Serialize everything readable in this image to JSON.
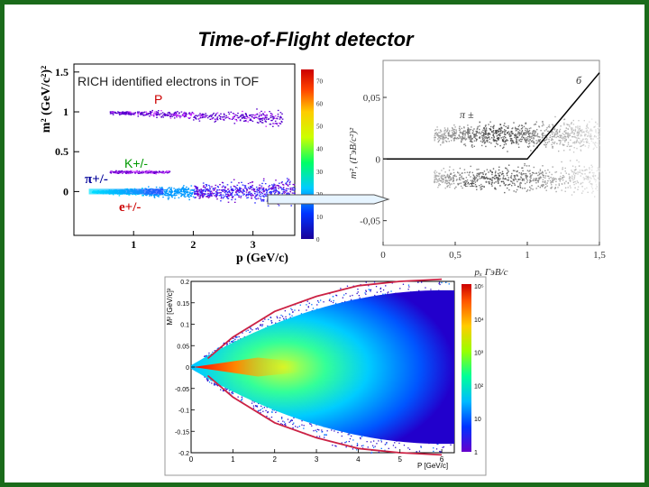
{
  "slide": {
    "title": "Time-of-Flight detector"
  },
  "chart_data": [
    {
      "type": "heatmap",
      "xlabel": "p (GeV/c)",
      "ylabel": "m² (GeV/c²)²",
      "x_ticks": [
        "1",
        "2",
        "3"
      ],
      "y_ticks": [
        "1.5",
        "1",
        "0.5",
        "0"
      ],
      "xlim": [
        0,
        3.7
      ],
      "ylim": [
        -0.55,
        1.6
      ],
      "colorbar_ticks": [
        "70",
        "60",
        "50",
        "40",
        "30",
        "20",
        "10",
        "0"
      ],
      "colorbar_range": [
        0,
        75
      ],
      "annotations": {
        "title_box": "RICH identified electrons in TOF",
        "proton": "P",
        "kaon": "K+/-",
        "pion": "π+/-",
        "electron": "e+/-"
      },
      "bands": [
        {
          "label": "P",
          "m2_center": 1.0,
          "p_range": [
            0.6,
            3.5
          ]
        },
        {
          "label": "K+/-",
          "m2_center": 0.25,
          "p_range": [
            0.6,
            1.6
          ]
        },
        {
          "label": "e+/-",
          "m2_center": 0.0,
          "p_range": [
            0.3,
            3.7
          ]
        }
      ]
    },
    {
      "type": "scatter",
      "xlabel": "pₓ ГэВ/с",
      "ylabel": "m², (ГэВ/с²)²",
      "x_ticks": [
        "0",
        "0,5",
        "1",
        "1,5"
      ],
      "y_ticks": [
        "0,05",
        "0",
        "-0,05"
      ],
      "xlim": [
        0,
        1.5
      ],
      "ylim": [
        -0.07,
        0.08
      ],
      "annotations": {
        "panel": "б",
        "pion": "π ±",
        "electron": "e±"
      },
      "cut_line": [
        [
          0,
          0
        ],
        [
          1.0,
          0
        ],
        [
          1.5,
          0.07
        ]
      ]
    },
    {
      "type": "heatmap",
      "xlabel": "P [GeV/c]",
      "ylabel": "M² [GeV/c]²",
      "x_ticks": [
        "0",
        "1",
        "2",
        "3",
        "4",
        "5",
        "6"
      ],
      "y_ticks": [
        "0.2",
        "0.15",
        "0.1",
        "0.05",
        "0",
        "-0.05",
        "-0.1",
        "-0.15",
        "-0.2"
      ],
      "xlim": [
        0,
        6.3
      ],
      "ylim": [
        -0.2,
        0.2
      ],
      "colorbar_ticks": [
        "10⁵",
        "10⁴",
        "10³",
        "10²",
        "10",
        "1"
      ],
      "colorbar_scale": "log",
      "cut_line": {
        "p": [
          0.4,
          1,
          2,
          3,
          4,
          5,
          6
        ],
        "m2_upper": [
          0.02,
          0.07,
          0.13,
          0.165,
          0.19,
          0.2,
          0.205
        ]
      }
    }
  ]
}
